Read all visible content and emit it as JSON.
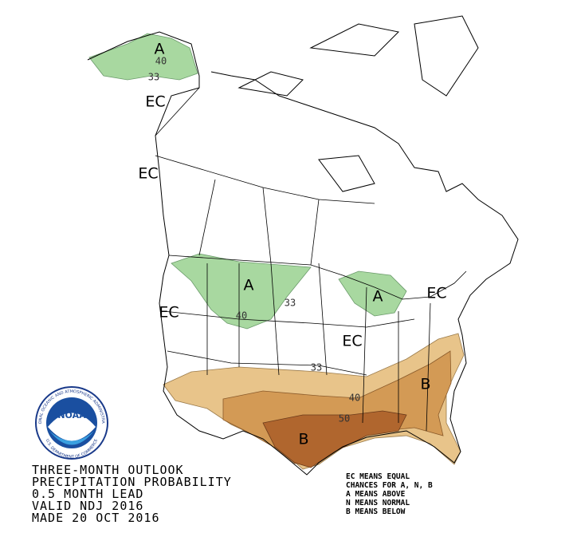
{
  "map": {
    "region_labels": [
      "A",
      "EC",
      "EC",
      "A",
      "A",
      "EC",
      "EC",
      "EC",
      "B",
      "B"
    ],
    "contour_labels": [
      "40",
      "33",
      "40",
      "33",
      "33",
      "40",
      "50"
    ],
    "logo": {
      "name": "NOAA",
      "ring_top": "NATIONAL OCEANIC AND ATMOSPHERIC ADMINISTRATION",
      "ring_bottom": "U.S. DEPARTMENT OF COMMERCE"
    },
    "title_lines": [
      "THREE-MONTH OUTLOOK",
      "PRECIPITATION PROBABILITY",
      "0.5 MONTH LEAD",
      "VALID NDJ 2016",
      "MADE 20 OCT 2016"
    ],
    "legend_lines": [
      "EC MEANS EQUAL",
      "CHANCES FOR A, N, B",
      "A MEANS ABOVE",
      "N MEANS NORMAL",
      "B MEANS BELOW"
    ]
  }
}
